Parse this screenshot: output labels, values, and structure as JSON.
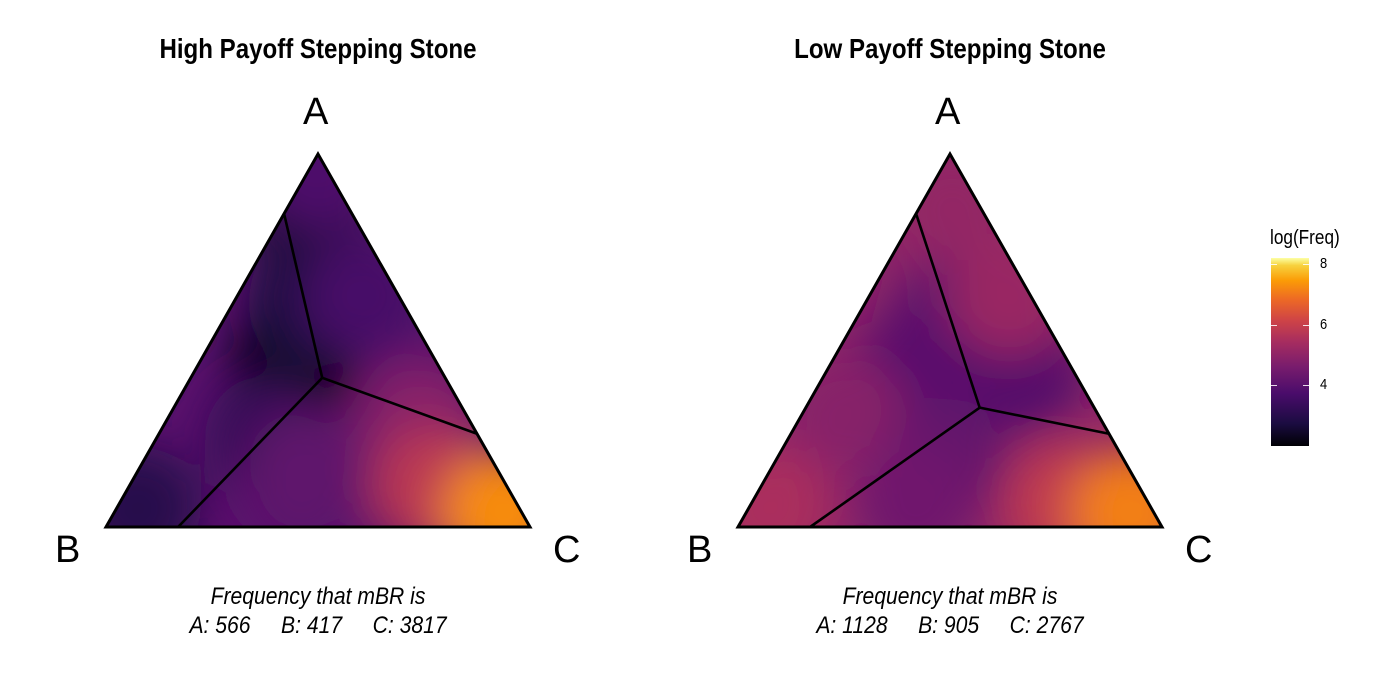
{
  "chart_data": [
    {
      "type": "heatmap",
      "subtype": "ternary",
      "title": "High Payoff Stepping Stone",
      "vertices": [
        "A",
        "B",
        "C"
      ],
      "color_scale": "inferno",
      "value": "log(Freq)",
      "region_boundaries": {
        "center": {
          "A": 0.4,
          "B": 0.29,
          "C": 0.31
        },
        "to_AB_edge": {
          "A": 0.84,
          "B": 0.16,
          "C": 0.0
        },
        "to_AC_edge": {
          "A": 0.25,
          "B": 0.0,
          "C": 0.75
        },
        "to_BC_edge": {
          "A": 0.0,
          "B": 0.83,
          "C": 0.17
        }
      },
      "hotspots": [
        {
          "A": 0.44,
          "B": 0.34,
          "C": 0.22,
          "v": 2.0
        },
        {
          "A": 0.85,
          "B": 0.1,
          "C": 0.05,
          "v": 2.6
        },
        {
          "A": 0.96,
          "B": 0.02,
          "C": 0.02,
          "v": 3.6
        },
        {
          "A": 0.6,
          "B": 0.22,
          "C": 0.18,
          "v": 2.8
        },
        {
          "A": 0.62,
          "B": 0.08,
          "C": 0.3,
          "v": 3.5
        },
        {
          "A": 0.28,
          "B": 0.12,
          "C": 0.6,
          "v": 4.6
        },
        {
          "A": 0.24,
          "B": 0.5,
          "C": 0.26,
          "v": 3.2
        },
        {
          "A": 0.05,
          "B": 0.9,
          "C": 0.05,
          "v": 3.0
        },
        {
          "A": 0.08,
          "B": 0.5,
          "C": 0.42,
          "v": 3.8
        },
        {
          "A": 0.1,
          "B": 0.18,
          "C": 0.72,
          "v": 5.5
        },
        {
          "A": 0.04,
          "B": 0.04,
          "C": 0.92,
          "v": 7.2
        },
        {
          "A": 0.15,
          "B": 0.45,
          "C": 0.4,
          "v": 3.9
        }
      ],
      "caption": {
        "heading": "Frequency that mBR is",
        "counts": [
          {
            "label": "A: 566"
          },
          {
            "label": "B: 417"
          },
          {
            "label": "C: 3817"
          }
        ]
      }
    },
    {
      "type": "heatmap",
      "subtype": "ternary",
      "title": "Low Payoff Stepping Stone",
      "vertices": [
        "A",
        "B",
        "C"
      ],
      "color_scale": "inferno",
      "value": "log(Freq)",
      "region_boundaries": {
        "center": {
          "A": 0.32,
          "B": 0.27,
          "C": 0.41
        },
        "to_AB_edge": {
          "A": 0.84,
          "B": 0.16,
          "C": 0.0
        },
        "to_AC_edge": {
          "A": 0.25,
          "B": 0.0,
          "C": 0.75
        },
        "to_BC_edge": {
          "A": 0.0,
          "B": 0.83,
          "C": 0.17
        }
      },
      "hotspots": [
        {
          "A": 0.85,
          "B": 0.07,
          "C": 0.08,
          "v": 4.8
        },
        {
          "A": 0.55,
          "B": 0.23,
          "C": 0.22,
          "v": 3.9
        },
        {
          "A": 0.42,
          "B": 0.12,
          "C": 0.46,
          "v": 3.7
        },
        {
          "A": 0.4,
          "B": 0.4,
          "C": 0.2,
          "v": 3.8
        },
        {
          "A": 0.3,
          "B": 0.6,
          "C": 0.1,
          "v": 4.6
        },
        {
          "A": 0.05,
          "B": 0.9,
          "C": 0.05,
          "v": 5.2
        },
        {
          "A": 0.18,
          "B": 0.42,
          "C": 0.4,
          "v": 4.0
        },
        {
          "A": 0.06,
          "B": 0.55,
          "C": 0.39,
          "v": 4.2
        },
        {
          "A": 0.06,
          "B": 0.2,
          "C": 0.74,
          "v": 5.6
        },
        {
          "A": 0.04,
          "B": 0.05,
          "C": 0.91,
          "v": 7.0
        },
        {
          "A": 0.62,
          "B": 0.05,
          "C": 0.33,
          "v": 4.9
        }
      ],
      "caption": {
        "heading": "Frequency that mBR is",
        "counts": [
          {
            "label": "A: 1128"
          },
          {
            "label": "B: 905"
          },
          {
            "label": "C: 2767"
          }
        ]
      }
    }
  ],
  "legend": {
    "title": "log(Freq)",
    "placement": "right",
    "range": [
      2,
      8.2
    ],
    "ticks": [
      {
        "value": 4,
        "label": "4"
      },
      {
        "value": 6,
        "label": "6"
      },
      {
        "value": 8,
        "label": "8"
      }
    ]
  }
}
